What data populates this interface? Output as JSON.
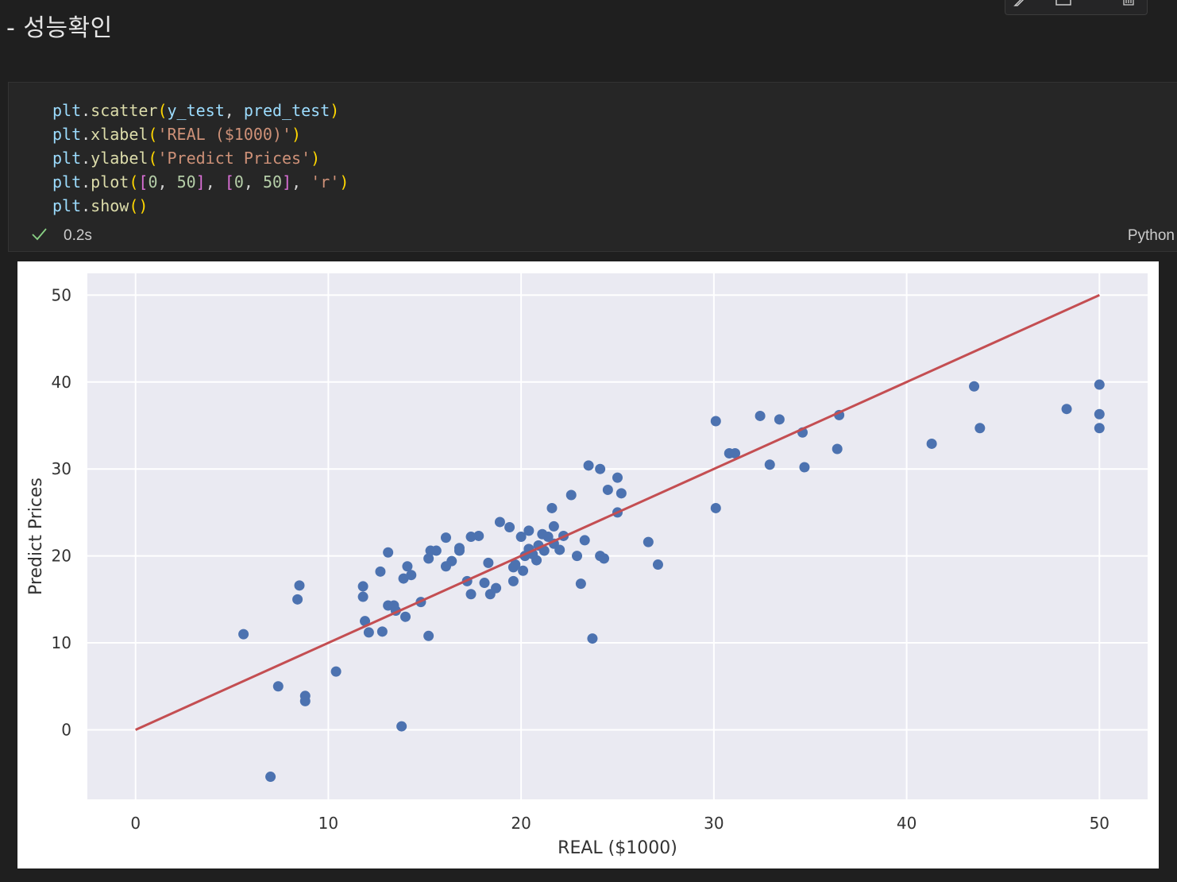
{
  "markdown": {
    "heading": "- 성능확인"
  },
  "toolbar": {
    "icons": [
      "edit-icon",
      "split-cell-icon",
      "delete-icon"
    ]
  },
  "code_cell": {
    "lines": [
      [
        [
          "plt",
          "var"
        ],
        [
          ".",
          "plain"
        ],
        [
          "scatter",
          "fn"
        ],
        [
          "(",
          "p1"
        ],
        [
          "y_test",
          "var"
        ],
        [
          ", ",
          "plain"
        ],
        [
          "pred_test",
          "var"
        ],
        [
          ")",
          "p1"
        ]
      ],
      [
        [
          "plt",
          "var"
        ],
        [
          ".",
          "plain"
        ],
        [
          "xlabel",
          "fn"
        ],
        [
          "(",
          "p1"
        ],
        [
          "'REAL ($1000)'",
          "str"
        ],
        [
          ")",
          "p1"
        ]
      ],
      [
        [
          "plt",
          "var"
        ],
        [
          ".",
          "plain"
        ],
        [
          "ylabel",
          "fn"
        ],
        [
          "(",
          "p1"
        ],
        [
          "'Predict Prices'",
          "str"
        ],
        [
          ")",
          "p1"
        ]
      ],
      [
        [
          "plt",
          "var"
        ],
        [
          ".",
          "plain"
        ],
        [
          "plot",
          "fn"
        ],
        [
          "(",
          "p1"
        ],
        [
          "[",
          "p2"
        ],
        [
          "0",
          "num"
        ],
        [
          ", ",
          "plain"
        ],
        [
          "50",
          "num"
        ],
        [
          "]",
          "p2"
        ],
        [
          ", ",
          "plain"
        ],
        [
          "[",
          "p2"
        ],
        [
          "0",
          "num"
        ],
        [
          ", ",
          "plain"
        ],
        [
          "50",
          "num"
        ],
        [
          "]",
          "p2"
        ],
        [
          ", ",
          "plain"
        ],
        [
          "'r'",
          "str"
        ],
        [
          ")",
          "p1"
        ]
      ],
      [
        [
          "plt",
          "var"
        ],
        [
          ".",
          "plain"
        ],
        [
          "show",
          "fn"
        ],
        [
          "()",
          "p1"
        ]
      ]
    ],
    "exec_time": "0.2s",
    "language": "Python",
    "status": "success"
  },
  "colors": {
    "background": "#1f1f1f",
    "cell_background": "#262626",
    "plot_background": "#eaeaf2",
    "marker": "#4c72b0",
    "line": "#c44e52"
  },
  "chart_data": {
    "type": "scatter",
    "style": "seaborn-darkgrid",
    "xlabel": "REAL ($1000)",
    "ylabel": "Predict Prices",
    "xlim": [
      -2.5,
      52.5
    ],
    "ylim": [
      -8,
      52.5
    ],
    "xticks": [
      0,
      10,
      20,
      30,
      40,
      50
    ],
    "yticks": [
      0,
      10,
      20,
      30,
      40,
      50
    ],
    "grid": true,
    "series": [
      {
        "kind": "scatter",
        "points": [
          [
            5.6,
            11.0
          ],
          [
            7.0,
            -5.4
          ],
          [
            7.4,
            5.0
          ],
          [
            8.4,
            15.0
          ],
          [
            8.5,
            16.6
          ],
          [
            8.8,
            3.9
          ],
          [
            8.8,
            3.3
          ],
          [
            10.4,
            6.7
          ],
          [
            11.8,
            16.5
          ],
          [
            11.8,
            15.3
          ],
          [
            11.9,
            12.5
          ],
          [
            12.1,
            11.2
          ],
          [
            12.7,
            18.2
          ],
          [
            12.8,
            11.3
          ],
          [
            13.1,
            20.4
          ],
          [
            13.1,
            14.3
          ],
          [
            13.4,
            14.3
          ],
          [
            13.5,
            13.7
          ],
          [
            13.8,
            0.4
          ],
          [
            13.9,
            17.4
          ],
          [
            14.0,
            13.0
          ],
          [
            14.1,
            18.8
          ],
          [
            14.3,
            17.8
          ],
          [
            14.8,
            14.7
          ],
          [
            15.2,
            10.8
          ],
          [
            15.2,
            19.7
          ],
          [
            15.3,
            20.6
          ],
          [
            15.6,
            20.6
          ],
          [
            16.1,
            22.1
          ],
          [
            16.1,
            18.8
          ],
          [
            16.4,
            19.4
          ],
          [
            16.8,
            20.9
          ],
          [
            16.8,
            20.6
          ],
          [
            17.2,
            17.1
          ],
          [
            17.4,
            22.2
          ],
          [
            17.4,
            15.6
          ],
          [
            17.8,
            22.3
          ],
          [
            18.1,
            16.9
          ],
          [
            18.3,
            19.2
          ],
          [
            18.4,
            15.6
          ],
          [
            18.7,
            16.3
          ],
          [
            18.9,
            23.9
          ],
          [
            19.4,
            23.3
          ],
          [
            19.6,
            18.7
          ],
          [
            19.6,
            17.1
          ],
          [
            19.7,
            19.0
          ],
          [
            20.0,
            22.2
          ],
          [
            20.1,
            18.3
          ],
          [
            20.2,
            20.0
          ],
          [
            20.4,
            22.9
          ],
          [
            20.4,
            20.8
          ],
          [
            20.6,
            20.2
          ],
          [
            20.8,
            19.5
          ],
          [
            20.9,
            21.2
          ],
          [
            21.1,
            22.5
          ],
          [
            21.2,
            20.6
          ],
          [
            21.4,
            22.2
          ],
          [
            21.6,
            25.5
          ],
          [
            21.7,
            21.4
          ],
          [
            21.7,
            23.4
          ],
          [
            22.0,
            20.7
          ],
          [
            22.2,
            22.3
          ],
          [
            22.6,
            27.0
          ],
          [
            22.9,
            20.0
          ],
          [
            23.1,
            16.8
          ],
          [
            23.3,
            21.8
          ],
          [
            23.5,
            30.4
          ],
          [
            23.7,
            10.5
          ],
          [
            24.1,
            30.0
          ],
          [
            24.1,
            20.0
          ],
          [
            24.3,
            19.7
          ],
          [
            24.5,
            27.6
          ],
          [
            25.0,
            29.0
          ],
          [
            25.0,
            25.0
          ],
          [
            25.2,
            27.2
          ],
          [
            26.6,
            21.6
          ],
          [
            27.1,
            19.0
          ],
          [
            30.1,
            35.5
          ],
          [
            30.1,
            25.5
          ],
          [
            30.8,
            31.8
          ],
          [
            31.1,
            31.8
          ],
          [
            32.4,
            36.1
          ],
          [
            32.9,
            30.5
          ],
          [
            33.4,
            35.7
          ],
          [
            34.6,
            34.2
          ],
          [
            34.7,
            30.2
          ],
          [
            36.4,
            32.3
          ],
          [
            36.5,
            36.2
          ],
          [
            41.3,
            32.9
          ],
          [
            43.5,
            39.5
          ],
          [
            43.8,
            34.7
          ],
          [
            48.3,
            36.9
          ],
          [
            50.0,
            39.7
          ],
          [
            50.0,
            36.3
          ],
          [
            50.0,
            34.7
          ]
        ]
      },
      {
        "kind": "line",
        "x": [
          0,
          50
        ],
        "y": [
          0,
          50
        ]
      }
    ]
  }
}
